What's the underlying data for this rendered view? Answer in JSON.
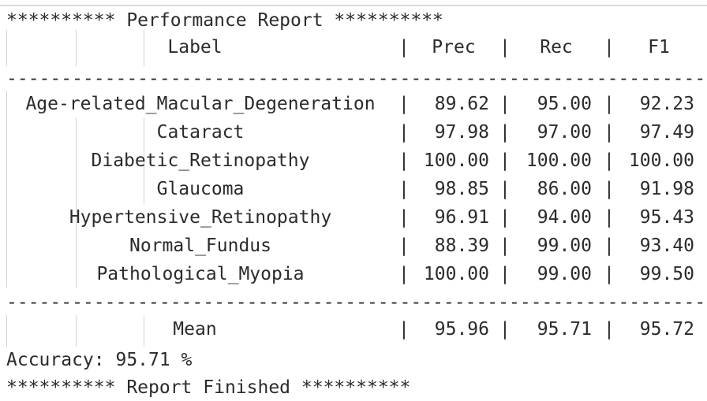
{
  "header": {
    "title_line": "********** Performance Report **********"
  },
  "table": {
    "columns": {
      "label": "Label",
      "prec": "Prec",
      "rec": "Rec",
      "f1": "F1"
    },
    "separator": "|",
    "divider": "----------------------------------------------------------------------------------------------",
    "rows": [
      {
        "label": "Age-related_Macular_Degeneration",
        "prec": "89.62",
        "rec": "95.00",
        "f1": "92.23"
      },
      {
        "label": "Cataract",
        "prec": "97.98",
        "rec": "97.00",
        "f1": "97.49"
      },
      {
        "label": "Diabetic_Retinopathy",
        "prec": "100.00",
        "rec": "100.00",
        "f1": "100.00"
      },
      {
        "label": "Glaucoma",
        "prec": "98.85",
        "rec": "86.00",
        "f1": "91.98"
      },
      {
        "label": "Hypertensive_Retinopathy",
        "prec": "96.91",
        "rec": "94.00",
        "f1": "95.43"
      },
      {
        "label": "Normal_Fundus",
        "prec": "88.39",
        "rec": "99.00",
        "f1": "93.40"
      },
      {
        "label": "Pathological_Myopia",
        "prec": "100.00",
        "rec": "99.00",
        "f1": "99.50"
      }
    ],
    "mean": {
      "label": "Mean",
      "prec": "95.96",
      "rec": "95.71",
      "f1": "95.72"
    }
  },
  "footer": {
    "accuracy_line": "Accuracy: 95.71 %",
    "finished_line": "********** Report Finished **********"
  }
}
